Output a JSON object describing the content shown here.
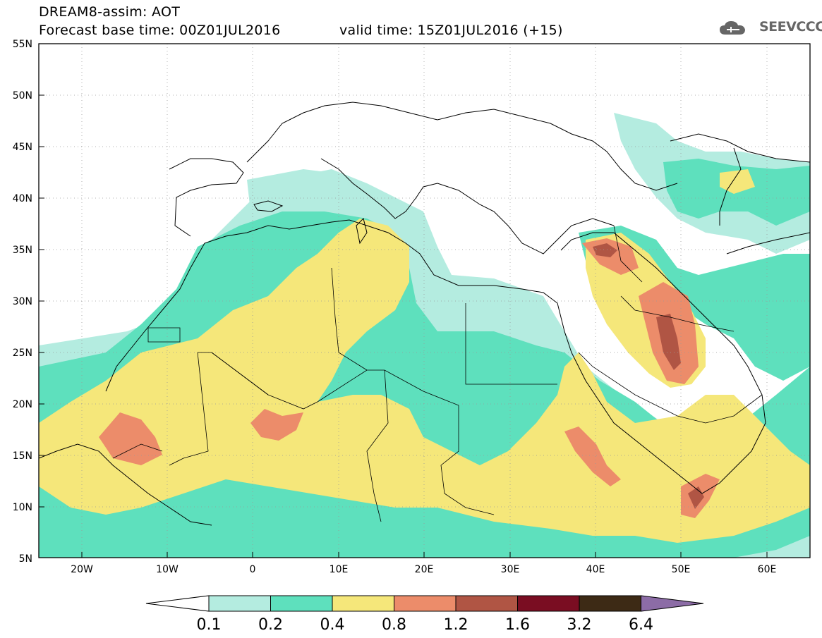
{
  "header": {
    "title": "DREAM8-assim: AOT",
    "forecast_base": "Forecast base time: 00Z01JUL2016",
    "valid_time": "valid time: 15Z01JUL2016 (+15)",
    "logo_text": "SEEVCCC"
  },
  "map": {
    "lat_labels": [
      "55N",
      "50N",
      "45N",
      "40N",
      "35N",
      "30N",
      "25N",
      "20N",
      "15N",
      "10N",
      "5N"
    ],
    "lon_labels": [
      "20W",
      "10W",
      "0",
      "10E",
      "20E",
      "30E",
      "40E",
      "50E",
      "60E"
    ],
    "lon_range": [
      -25,
      65
    ],
    "lat_range": [
      5,
      55
    ]
  },
  "colorbar": {
    "labels": [
      "0.1",
      "0.2",
      "0.4",
      "0.8",
      "1.2",
      "1.6",
      "3.2",
      "6.4"
    ],
    "colors": [
      "#ffffff",
      "#b4ece0",
      "#5ee0bd",
      "#f5e77a",
      "#ec8c6a",
      "#b05544",
      "#7a0d22",
      "#3d2a15",
      "#8c6ca6"
    ]
  }
}
